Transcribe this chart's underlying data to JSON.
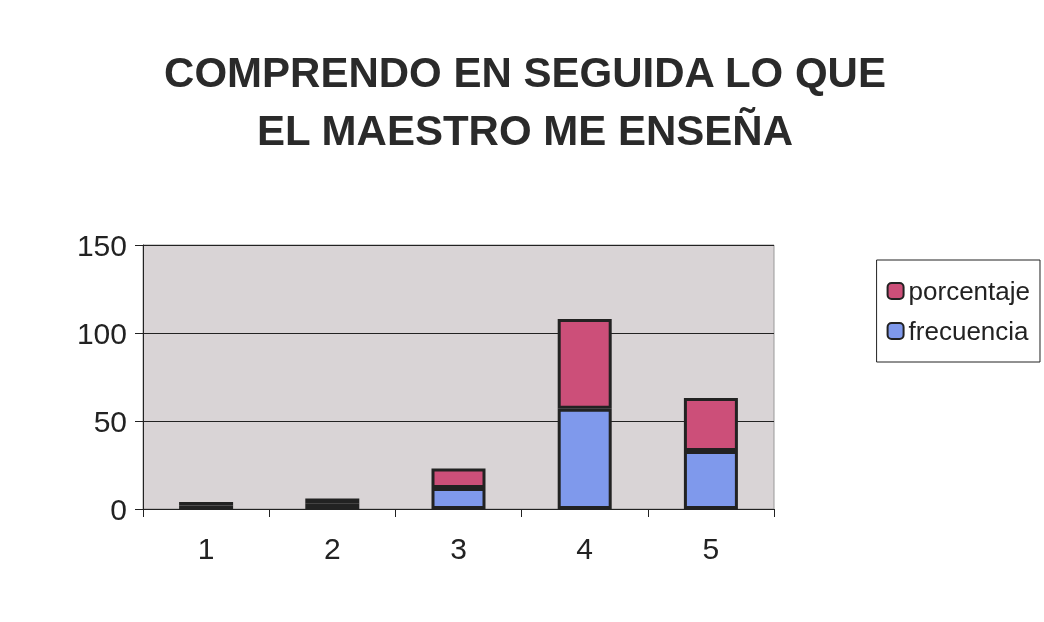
{
  "chart_data": {
    "type": "bar",
    "title": "COMPRENDO EN SEGUIDA LO QUE\nEL MAESTRO ME ENSEÑA",
    "categories": [
      "1",
      "2",
      "3",
      "4",
      "5"
    ],
    "series": [
      {
        "name": "frecuencia",
        "color": "#7f99ec",
        "values": [
          2,
          3,
          12,
          57,
          33
        ]
      },
      {
        "name": "porcentaje",
        "color": "#cc4f79",
        "values": [
          2,
          3,
          11,
          51,
          30
        ]
      }
    ],
    "stacked": true,
    "ylim": [
      0,
      150
    ],
    "yticks": [
      0,
      50,
      100,
      150
    ],
    "grid": "y",
    "legend": "right"
  }
}
